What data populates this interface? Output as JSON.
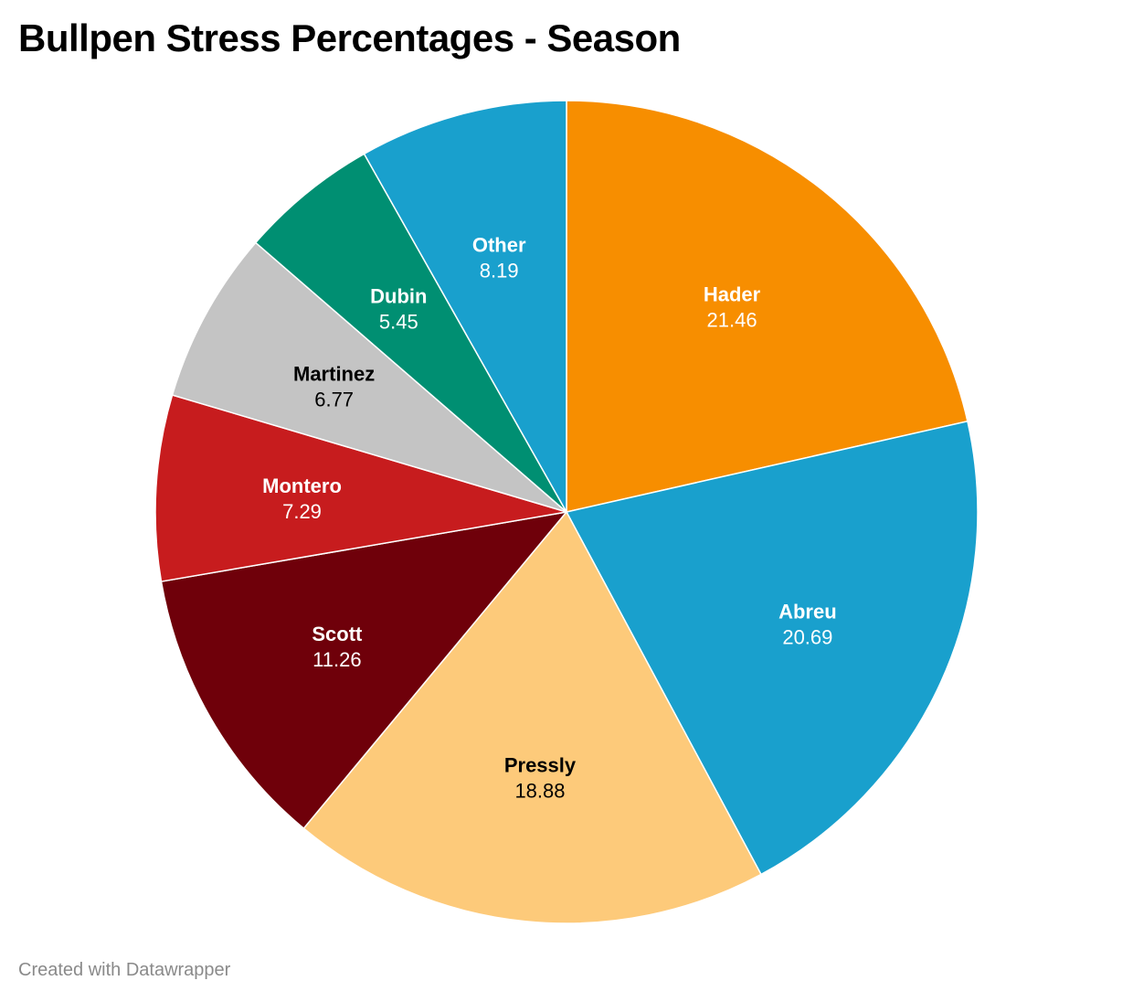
{
  "title": "Bullpen Stress Percentages - Season",
  "footer": "Created with Datawrapper",
  "chart_data": {
    "type": "pie",
    "title": "Bullpen Stress Percentages - Season",
    "slices": [
      {
        "label": "Hader",
        "value": 21.46,
        "color": "#f78e00",
        "text_color": "#ffffff"
      },
      {
        "label": "Abreu",
        "value": 20.69,
        "color": "#19a0cd",
        "text_color": "#ffffff"
      },
      {
        "label": "Pressly",
        "value": 18.88,
        "color": "#fdca7a",
        "text_color": "#000000"
      },
      {
        "label": "Scott",
        "value": 11.26,
        "color": "#6f000a",
        "text_color": "#ffffff"
      },
      {
        "label": "Montero",
        "value": 7.29,
        "color": "#c71c1e",
        "text_color": "#ffffff"
      },
      {
        "label": "Martinez",
        "value": 6.77,
        "color": "#c4c4c4",
        "text_color": "#000000"
      },
      {
        "label": "Dubin",
        "value": 5.45,
        "color": "#008f72",
        "text_color": "#ffffff"
      },
      {
        "label": "Other",
        "value": 8.19,
        "color": "#19a0cd",
        "text_color": "#ffffff"
      }
    ]
  }
}
